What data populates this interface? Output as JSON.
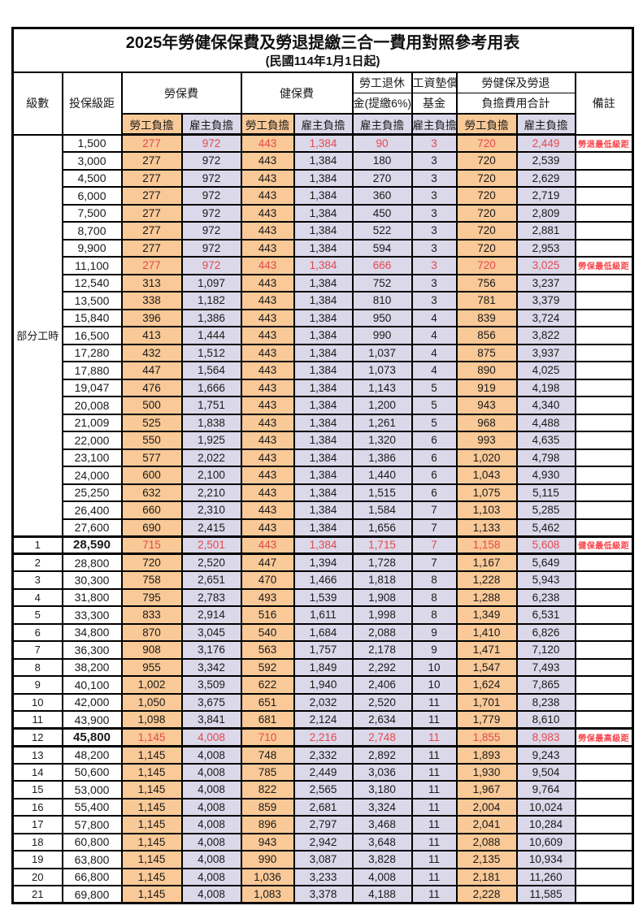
{
  "title": "2025年勞健保保費及勞退提繳三合一費用對照參考用表",
  "subtitle": "(民國114年1月1日起)",
  "colors": {
    "employee_bg": "#F9C997",
    "employer_bg": "#DBD8EA",
    "highlight_number_red": "#E2494E",
    "remark_red": "#FA4046",
    "border_black": "#000000"
  },
  "header": {
    "level": "級數",
    "bracket": "投保級距",
    "labor_insurance": "勞保費",
    "health_insurance": "健保費",
    "pension_line1": "勞工退休",
    "pension_line2": "金(提繳6%)",
    "wage_fund_line1": "工資墊償",
    "wage_fund_line2": "基金",
    "total_line1": "勞健保及勞退",
    "total_line2": "負擔費用合計",
    "remark": "備註",
    "employee_share": "勞工負擔",
    "employer_share": "雇主負擔"
  },
  "part_time_label": "部分工時",
  "part_time_rowspan": 23,
  "rows": [
    {
      "level": "",
      "bracket": "1,500",
      "li_emp": "277",
      "li_er": "972",
      "hi_emp": "443",
      "hi_er": "1,384",
      "pension": "90",
      "fund": "3",
      "tot_emp": "720",
      "tot_er": "2,449",
      "remark": "勞退最低級距",
      "red": true,
      "bold": false
    },
    {
      "level": "",
      "bracket": "3,000",
      "li_emp": "277",
      "li_er": "972",
      "hi_emp": "443",
      "hi_er": "1,384",
      "pension": "180",
      "fund": "3",
      "tot_emp": "720",
      "tot_er": "2,539",
      "remark": "",
      "red": false,
      "bold": false
    },
    {
      "level": "",
      "bracket": "4,500",
      "li_emp": "277",
      "li_er": "972",
      "hi_emp": "443",
      "hi_er": "1,384",
      "pension": "270",
      "fund": "3",
      "tot_emp": "720",
      "tot_er": "2,629",
      "remark": "",
      "red": false,
      "bold": false
    },
    {
      "level": "",
      "bracket": "6,000",
      "li_emp": "277",
      "li_er": "972",
      "hi_emp": "443",
      "hi_er": "1,384",
      "pension": "360",
      "fund": "3",
      "tot_emp": "720",
      "tot_er": "2,719",
      "remark": "",
      "red": false,
      "bold": false
    },
    {
      "level": "",
      "bracket": "7,500",
      "li_emp": "277",
      "li_er": "972",
      "hi_emp": "443",
      "hi_er": "1,384",
      "pension": "450",
      "fund": "3",
      "tot_emp": "720",
      "tot_er": "2,809",
      "remark": "",
      "red": false,
      "bold": false
    },
    {
      "level": "",
      "bracket": "8,700",
      "li_emp": "277",
      "li_er": "972",
      "hi_emp": "443",
      "hi_er": "1,384",
      "pension": "522",
      "fund": "3",
      "tot_emp": "720",
      "tot_er": "2,881",
      "remark": "",
      "red": false,
      "bold": false
    },
    {
      "level": "",
      "bracket": "9,900",
      "li_emp": "277",
      "li_er": "972",
      "hi_emp": "443",
      "hi_er": "1,384",
      "pension": "594",
      "fund": "3",
      "tot_emp": "720",
      "tot_er": "2,953",
      "remark": "",
      "red": false,
      "bold": false
    },
    {
      "level": "",
      "bracket": "11,100",
      "li_emp": "277",
      "li_er": "972",
      "hi_emp": "443",
      "hi_er": "1,384",
      "pension": "666",
      "fund": "3",
      "tot_emp": "720",
      "tot_er": "3,025",
      "remark": "勞保最低級距",
      "red": true,
      "bold": false
    },
    {
      "level": "",
      "bracket": "12,540",
      "li_emp": "313",
      "li_er": "1,097",
      "hi_emp": "443",
      "hi_er": "1,384",
      "pension": "752",
      "fund": "3",
      "tot_emp": "756",
      "tot_er": "3,237",
      "remark": "",
      "red": false,
      "bold": false
    },
    {
      "level": "",
      "bracket": "13,500",
      "li_emp": "338",
      "li_er": "1,182",
      "hi_emp": "443",
      "hi_er": "1,384",
      "pension": "810",
      "fund": "3",
      "tot_emp": "781",
      "tot_er": "3,379",
      "remark": "",
      "red": false,
      "bold": false
    },
    {
      "level": "",
      "bracket": "15,840",
      "li_emp": "396",
      "li_er": "1,386",
      "hi_emp": "443",
      "hi_er": "1,384",
      "pension": "950",
      "fund": "4",
      "tot_emp": "839",
      "tot_er": "3,724",
      "remark": "",
      "red": false,
      "bold": false
    },
    {
      "level": "",
      "bracket": "16,500",
      "li_emp": "413",
      "li_er": "1,444",
      "hi_emp": "443",
      "hi_er": "1,384",
      "pension": "990",
      "fund": "4",
      "tot_emp": "856",
      "tot_er": "3,822",
      "remark": "",
      "red": false,
      "bold": false
    },
    {
      "level": "",
      "bracket": "17,280",
      "li_emp": "432",
      "li_er": "1,512",
      "hi_emp": "443",
      "hi_er": "1,384",
      "pension": "1,037",
      "fund": "4",
      "tot_emp": "875",
      "tot_er": "3,937",
      "remark": "",
      "red": false,
      "bold": false
    },
    {
      "level": "",
      "bracket": "17,880",
      "li_emp": "447",
      "li_er": "1,564",
      "hi_emp": "443",
      "hi_er": "1,384",
      "pension": "1,073",
      "fund": "4",
      "tot_emp": "890",
      "tot_er": "4,025",
      "remark": "",
      "red": false,
      "bold": false
    },
    {
      "level": "",
      "bracket": "19,047",
      "li_emp": "476",
      "li_er": "1,666",
      "hi_emp": "443",
      "hi_er": "1,384",
      "pension": "1,143",
      "fund": "5",
      "tot_emp": "919",
      "tot_er": "4,198",
      "remark": "",
      "red": false,
      "bold": false
    },
    {
      "level": "",
      "bracket": "20,008",
      "li_emp": "500",
      "li_er": "1,751",
      "hi_emp": "443",
      "hi_er": "1,384",
      "pension": "1,200",
      "fund": "5",
      "tot_emp": "943",
      "tot_er": "4,340",
      "remark": "",
      "red": false,
      "bold": false
    },
    {
      "level": "",
      "bracket": "21,009",
      "li_emp": "525",
      "li_er": "1,838",
      "hi_emp": "443",
      "hi_er": "1,384",
      "pension": "1,261",
      "fund": "5",
      "tot_emp": "968",
      "tot_er": "4,488",
      "remark": "",
      "red": false,
      "bold": false
    },
    {
      "level": "",
      "bracket": "22,000",
      "li_emp": "550",
      "li_er": "1,925",
      "hi_emp": "443",
      "hi_er": "1,384",
      "pension": "1,320",
      "fund": "6",
      "tot_emp": "993",
      "tot_er": "4,635",
      "remark": "",
      "red": false,
      "bold": false
    },
    {
      "level": "",
      "bracket": "23,100",
      "li_emp": "577",
      "li_er": "2,022",
      "hi_emp": "443",
      "hi_er": "1,384",
      "pension": "1,386",
      "fund": "6",
      "tot_emp": "1,020",
      "tot_er": "4,798",
      "remark": "",
      "red": false,
      "bold": false
    },
    {
      "level": "",
      "bracket": "24,000",
      "li_emp": "600",
      "li_er": "2,100",
      "hi_emp": "443",
      "hi_er": "1,384",
      "pension": "1,440",
      "fund": "6",
      "tot_emp": "1,043",
      "tot_er": "4,930",
      "remark": "",
      "red": false,
      "bold": false
    },
    {
      "level": "",
      "bracket": "25,250",
      "li_emp": "632",
      "li_er": "2,210",
      "hi_emp": "443",
      "hi_er": "1,384",
      "pension": "1,515",
      "fund": "6",
      "tot_emp": "1,075",
      "tot_er": "5,115",
      "remark": "",
      "red": false,
      "bold": false
    },
    {
      "level": "",
      "bracket": "26,400",
      "li_emp": "660",
      "li_er": "2,310",
      "hi_emp": "443",
      "hi_er": "1,384",
      "pension": "1,584",
      "fund": "7",
      "tot_emp": "1,103",
      "tot_er": "5,285",
      "remark": "",
      "red": false,
      "bold": false
    },
    {
      "level": "",
      "bracket": "27,600",
      "li_emp": "690",
      "li_er": "2,415",
      "hi_emp": "443",
      "hi_er": "1,384",
      "pension": "1,656",
      "fund": "7",
      "tot_emp": "1,133",
      "tot_er": "5,462",
      "remark": "",
      "red": false,
      "bold": false
    },
    {
      "level": "1",
      "bracket": "28,590",
      "li_emp": "715",
      "li_er": "2,501",
      "hi_emp": "443",
      "hi_er": "1,384",
      "pension": "1,715",
      "fund": "7",
      "tot_emp": "1,158",
      "tot_er": "5,608",
      "remark": "健保最低級距",
      "red": true,
      "bold": true,
      "thick": true
    },
    {
      "level": "2",
      "bracket": "28,800",
      "li_emp": "720",
      "li_er": "2,520",
      "hi_emp": "447",
      "hi_er": "1,394",
      "pension": "1,728",
      "fund": "7",
      "tot_emp": "1,167",
      "tot_er": "5,649",
      "remark": "",
      "red": false,
      "bold": false
    },
    {
      "level": "3",
      "bracket": "30,300",
      "li_emp": "758",
      "li_er": "2,651",
      "hi_emp": "470",
      "hi_er": "1,466",
      "pension": "1,818",
      "fund": "8",
      "tot_emp": "1,228",
      "tot_er": "5,943",
      "remark": "",
      "red": false,
      "bold": false
    },
    {
      "level": "4",
      "bracket": "31,800",
      "li_emp": "795",
      "li_er": "2,783",
      "hi_emp": "493",
      "hi_er": "1,539",
      "pension": "1,908",
      "fund": "8",
      "tot_emp": "1,288",
      "tot_er": "6,238",
      "remark": "",
      "red": false,
      "bold": false
    },
    {
      "level": "5",
      "bracket": "33,300",
      "li_emp": "833",
      "li_er": "2,914",
      "hi_emp": "516",
      "hi_er": "1,611",
      "pension": "1,998",
      "fund": "8",
      "tot_emp": "1,349",
      "tot_er": "6,531",
      "remark": "",
      "red": false,
      "bold": false
    },
    {
      "level": "6",
      "bracket": "34,800",
      "li_emp": "870",
      "li_er": "3,045",
      "hi_emp": "540",
      "hi_er": "1,684",
      "pension": "2,088",
      "fund": "9",
      "tot_emp": "1,410",
      "tot_er": "6,826",
      "remark": "",
      "red": false,
      "bold": false
    },
    {
      "level": "7",
      "bracket": "36,300",
      "li_emp": "908",
      "li_er": "3,176",
      "hi_emp": "563",
      "hi_er": "1,757",
      "pension": "2,178",
      "fund": "9",
      "tot_emp": "1,471",
      "tot_er": "7,120",
      "remark": "",
      "red": false,
      "bold": false
    },
    {
      "level": "8",
      "bracket": "38,200",
      "li_emp": "955",
      "li_er": "3,342",
      "hi_emp": "592",
      "hi_er": "1,849",
      "pension": "2,292",
      "fund": "10",
      "tot_emp": "1,547",
      "tot_er": "7,493",
      "remark": "",
      "red": false,
      "bold": false
    },
    {
      "level": "9",
      "bracket": "40,100",
      "li_emp": "1,002",
      "li_er": "3,509",
      "hi_emp": "622",
      "hi_er": "1,940",
      "pension": "2,406",
      "fund": "10",
      "tot_emp": "1,624",
      "tot_er": "7,865",
      "remark": "",
      "red": false,
      "bold": false
    },
    {
      "level": "10",
      "bracket": "42,000",
      "li_emp": "1,050",
      "li_er": "3,675",
      "hi_emp": "651",
      "hi_er": "2,032",
      "pension": "2,520",
      "fund": "11",
      "tot_emp": "1,701",
      "tot_er": "8,238",
      "remark": "",
      "red": false,
      "bold": false
    },
    {
      "level": "11",
      "bracket": "43,900",
      "li_emp": "1,098",
      "li_er": "3,841",
      "hi_emp": "681",
      "hi_er": "2,124",
      "pension": "2,634",
      "fund": "11",
      "tot_emp": "1,779",
      "tot_er": "8,610",
      "remark": "",
      "red": false,
      "bold": false
    },
    {
      "level": "12",
      "bracket": "45,800",
      "li_emp": "1,145",
      "li_er": "4,008",
      "hi_emp": "710",
      "hi_er": "2,216",
      "pension": "2,748",
      "fund": "11",
      "tot_emp": "1,855",
      "tot_er": "8,983",
      "remark": "勞保最高級距",
      "red": true,
      "bold": true,
      "thick": true
    },
    {
      "level": "13",
      "bracket": "48,200",
      "li_emp": "1,145",
      "li_er": "4,008",
      "hi_emp": "748",
      "hi_er": "2,332",
      "pension": "2,892",
      "fund": "11",
      "tot_emp": "1,893",
      "tot_er": "9,243",
      "remark": "",
      "red": false,
      "bold": false
    },
    {
      "level": "14",
      "bracket": "50,600",
      "li_emp": "1,145",
      "li_er": "4,008",
      "hi_emp": "785",
      "hi_er": "2,449",
      "pension": "3,036",
      "fund": "11",
      "tot_emp": "1,930",
      "tot_er": "9,504",
      "remark": "",
      "red": false,
      "bold": false
    },
    {
      "level": "15",
      "bracket": "53,000",
      "li_emp": "1,145",
      "li_er": "4,008",
      "hi_emp": "822",
      "hi_er": "2,565",
      "pension": "3,180",
      "fund": "11",
      "tot_emp": "1,967",
      "tot_er": "9,764",
      "remark": "",
      "red": false,
      "bold": false
    },
    {
      "level": "16",
      "bracket": "55,400",
      "li_emp": "1,145",
      "li_er": "4,008",
      "hi_emp": "859",
      "hi_er": "2,681",
      "pension": "3,324",
      "fund": "11",
      "tot_emp": "2,004",
      "tot_er": "10,024",
      "remark": "",
      "red": false,
      "bold": false
    },
    {
      "level": "17",
      "bracket": "57,800",
      "li_emp": "1,145",
      "li_er": "4,008",
      "hi_emp": "896",
      "hi_er": "2,797",
      "pension": "3,468",
      "fund": "11",
      "tot_emp": "2,041",
      "tot_er": "10,284",
      "remark": "",
      "red": false,
      "bold": false
    },
    {
      "level": "18",
      "bracket": "60,800",
      "li_emp": "1,145",
      "li_er": "4,008",
      "hi_emp": "943",
      "hi_er": "2,942",
      "pension": "3,648",
      "fund": "11",
      "tot_emp": "2,088",
      "tot_er": "10,609",
      "remark": "",
      "red": false,
      "bold": false
    },
    {
      "level": "19",
      "bracket": "63,800",
      "li_emp": "1,145",
      "li_er": "4,008",
      "hi_emp": "990",
      "hi_er": "3,087",
      "pension": "3,828",
      "fund": "11",
      "tot_emp": "2,135",
      "tot_er": "10,934",
      "remark": "",
      "red": false,
      "bold": false
    },
    {
      "level": "20",
      "bracket": "66,800",
      "li_emp": "1,145",
      "li_er": "4,008",
      "hi_emp": "1,036",
      "hi_er": "3,233",
      "pension": "4,008",
      "fund": "11",
      "tot_emp": "2,181",
      "tot_er": "11,260",
      "remark": "",
      "red": false,
      "bold": false
    },
    {
      "level": "21",
      "bracket": "69,800",
      "li_emp": "1,145",
      "li_er": "4,008",
      "hi_emp": "1,083",
      "hi_er": "3,378",
      "pension": "4,188",
      "fund": "11",
      "tot_emp": "2,228",
      "tot_er": "11,585",
      "remark": "",
      "red": false,
      "bold": false
    }
  ]
}
